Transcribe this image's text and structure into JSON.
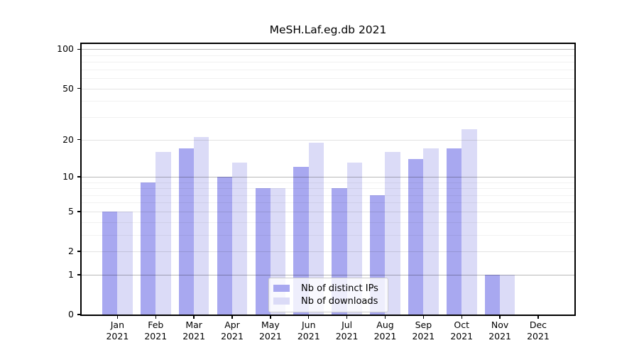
{
  "title": "MeSH.Laf.eg.db 2021",
  "chart_data": {
    "type": "bar",
    "title": "MeSH.Laf.eg.db 2021",
    "categories": [
      "Jan 2021",
      "Feb 2021",
      "Mar 2021",
      "Apr 2021",
      "May 2021",
      "Jun 2021",
      "Jul 2021",
      "Aug 2021",
      "Sep 2021",
      "Oct 2021",
      "Nov 2021",
      "Dec 2021"
    ],
    "x_tick_month": [
      "Jan",
      "Feb",
      "Mar",
      "Apr",
      "May",
      "Jun",
      "Jul",
      "Aug",
      "Sep",
      "Oct",
      "Nov",
      "Dec"
    ],
    "x_tick_year": "2021",
    "series": [
      {
        "name": "Nb of distinct IPs",
        "color": "#a8a8f0",
        "values": [
          5,
          9,
          17,
          10,
          8,
          12,
          8,
          7,
          14,
          17,
          1,
          0
        ]
      },
      {
        "name": "Nb of downloads",
        "color": "#dbdbf7",
        "values": [
          5,
          16,
          21,
          13,
          8,
          19,
          13,
          16,
          17,
          24,
          1,
          0
        ]
      }
    ],
    "xlabel": "",
    "ylabel": "",
    "y_axis": {
      "scale": "log10(1+y)",
      "tick_values": [
        100,
        50,
        20,
        10,
        5,
        2,
        1,
        0
      ],
      "ylim": [
        0,
        113
      ],
      "grid": true,
      "grid_major_values": [
        1,
        10,
        100
      ],
      "grid_mid_values": [
        2,
        5,
        20,
        50
      ],
      "grid_minor_values": [
        3,
        4,
        6,
        7,
        8,
        9,
        30,
        40,
        60,
        70,
        80,
        90
      ]
    },
    "legend_position": "lower center"
  },
  "colors": {
    "ips_bar": "#a8a8f0",
    "downloads_bar": "#dbdbf7",
    "grid_major": "rgba(0,0,0,0.28)",
    "grid_mid": "rgba(0,0,0,0.11)",
    "grid_minor": "rgba(0,0,0,0.055)",
    "spine": "#000000",
    "background": "#ffffff"
  }
}
